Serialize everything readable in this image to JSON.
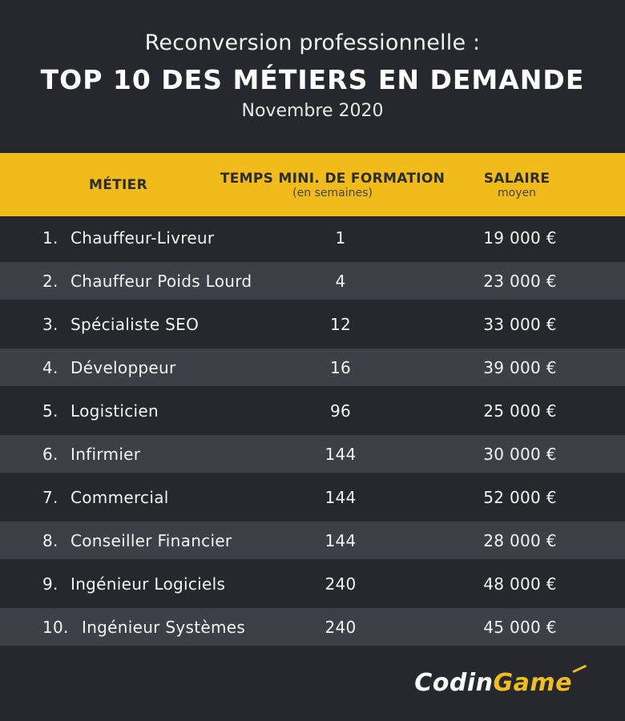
{
  "header": {
    "subtitle": "Reconversion professionnelle :",
    "title": "TOP 10 DES MÉTIERS EN DEMANDE",
    "date": "Novembre 2020"
  },
  "columns": {
    "job": "MÉTIER",
    "time": "TEMPS MINI. DE FORMATION",
    "time_sub": "(en semaines)",
    "salary": "SALAIRE",
    "salary_sub": "moyen"
  },
  "chart_data": {
    "type": "table",
    "title": "TOP 10 DES MÉTIERS EN DEMANDE",
    "columns": [
      "MÉTIER",
      "TEMPS MINI. DE FORMATION (en semaines)",
      "SALAIRE moyen"
    ],
    "rows": [
      {
        "rank": "1.",
        "job": "Chauffeur-Livreur",
        "weeks": "1",
        "salary": "19 000 €"
      },
      {
        "rank": "2.",
        "job": "Chauffeur Poids Lourd",
        "weeks": "4",
        "salary": "23 000 €"
      },
      {
        "rank": "3.",
        "job": "Spécialiste SEO",
        "weeks": "12",
        "salary": "33 000 €"
      },
      {
        "rank": "4.",
        "job": "Développeur",
        "weeks": "16",
        "salary": "39 000 €"
      },
      {
        "rank": "5.",
        "job": "Logisticien",
        "weeks": "96",
        "salary": "25 000 €"
      },
      {
        "rank": "6.",
        "job": "Infirmier",
        "weeks": "144",
        "salary": "30 000 €"
      },
      {
        "rank": "7.",
        "job": "Commercial",
        "weeks": "144",
        "salary": "52 000 €"
      },
      {
        "rank": "8.",
        "job": "Conseiller Financier",
        "weeks": "144",
        "salary": "28 000 €"
      },
      {
        "rank": "9.",
        "job": "Ingénieur Logiciels",
        "weeks": "240",
        "salary": "48 000 €"
      },
      {
        "rank": "10.",
        "job": "Ingénieur Systèmes",
        "weeks": "240",
        "salary": "45 000 €"
      }
    ]
  },
  "logo": {
    "part1": "Codin",
    "part2": "Game"
  },
  "colors": {
    "background": "#25282d",
    "accent": "#f1bc1a",
    "row_alt": "#3d4147"
  }
}
